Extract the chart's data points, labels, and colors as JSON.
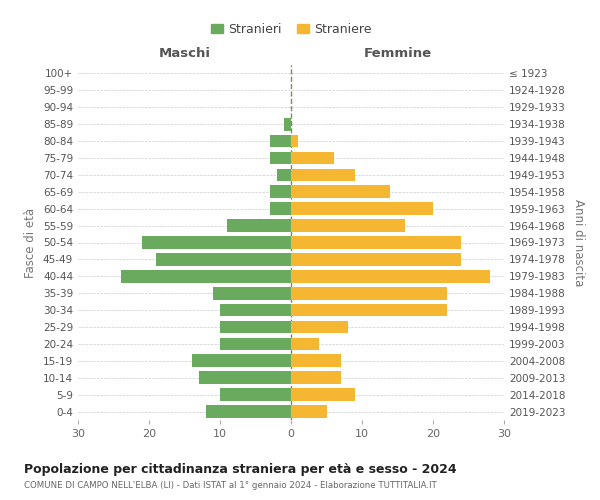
{
  "age_groups_bottom_to_top": [
    "0-4",
    "5-9",
    "10-14",
    "15-19",
    "20-24",
    "25-29",
    "30-34",
    "35-39",
    "40-44",
    "45-49",
    "50-54",
    "55-59",
    "60-64",
    "65-69",
    "70-74",
    "75-79",
    "80-84",
    "85-89",
    "90-94",
    "95-99",
    "100+"
  ],
  "birth_years_bottom_to_top": [
    "2019-2023",
    "2014-2018",
    "2009-2013",
    "2004-2008",
    "1999-2003",
    "1994-1998",
    "1989-1993",
    "1984-1988",
    "1979-1983",
    "1974-1978",
    "1969-1973",
    "1964-1968",
    "1959-1963",
    "1954-1958",
    "1949-1953",
    "1944-1948",
    "1939-1943",
    "1934-1938",
    "1929-1933",
    "1924-1928",
    "≤ 1923"
  ],
  "males_bottom_to_top": [
    12,
    10,
    13,
    14,
    10,
    10,
    10,
    11,
    24,
    19,
    21,
    9,
    3,
    3,
    2,
    3,
    3,
    1,
    0,
    0,
    0
  ],
  "females_bottom_to_top": [
    5,
    9,
    7,
    7,
    4,
    8,
    22,
    22,
    28,
    24,
    24,
    16,
    20,
    14,
    9,
    6,
    1,
    0,
    0,
    0,
    0
  ],
  "male_color": "#6aaa5e",
  "female_color": "#f5b731",
  "title": "Popolazione per cittadinanza straniera per età e sesso - 2024",
  "subtitle": "COMUNE DI CAMPO NELL'ELBA (LI) - Dati ISTAT al 1° gennaio 2024 - Elaborazione TUTTITALIA.IT",
  "ylabel_left": "Fasce di età",
  "ylabel_right": "Anni di nascita",
  "xlabel_left": "Maschi",
  "xlabel_right": "Femmine",
  "legend_male": "Stranieri",
  "legend_female": "Straniere",
  "xlim": 30,
  "background_color": "#ffffff",
  "grid_color": "#cccccc",
  "bar_height": 0.75
}
